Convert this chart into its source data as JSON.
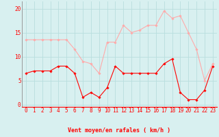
{
  "hours": [
    0,
    1,
    2,
    3,
    4,
    5,
    6,
    7,
    8,
    9,
    10,
    11,
    12,
    13,
    14,
    15,
    16,
    17,
    18,
    19,
    20,
    21,
    22,
    23
  ],
  "wind_avg": [
    6.5,
    7,
    7,
    7,
    8,
    8,
    6.5,
    1.5,
    2.5,
    1.5,
    3.5,
    8,
    6.5,
    6.5,
    6.5,
    6.5,
    6.5,
    8.5,
    9.5,
    2.5,
    1,
    1,
    3,
    8
  ],
  "wind_gust": [
    13.5,
    13.5,
    13.5,
    13.5,
    13.5,
    13.5,
    11.5,
    9,
    8.5,
    6.5,
    13,
    13,
    16.5,
    15,
    15.5,
    16.5,
    16.5,
    19.5,
    18,
    18.5,
    15,
    11.5,
    5,
    8.5
  ],
  "avg_color": "#ff0000",
  "gust_color": "#ffaaaa",
  "bg_color": "#d8f0f0",
  "grid_color": "#b8dede",
  "xlabel": "Vent moyen/en rafales ( km/h )",
  "xlabel_color": "#ff0000",
  "yticks": [
    0,
    5,
    10,
    15,
    20
  ],
  "ylim": [
    -0.5,
    21.5
  ],
  "xlim": [
    -0.5,
    23.5
  ],
  "tick_fontsize": 5.5,
  "label_fontsize": 6.0
}
